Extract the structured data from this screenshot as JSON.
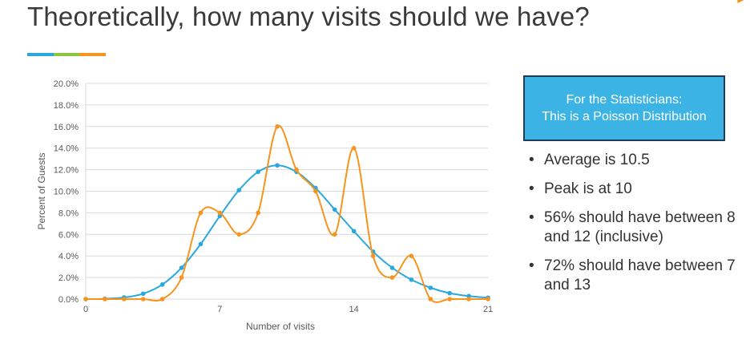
{
  "slide": {
    "title": "Theoretically, how many visits should we have?",
    "accent_colors": [
      "#29a8e0",
      "#8cc63f",
      "#f7941d"
    ]
  },
  "callout": {
    "line1": "For the Statisticians:",
    "line2": "This is a Poisson Distribution",
    "fill_color": "#3bb4e5",
    "border_color": "#1f3c5a"
  },
  "bullets": [
    "Average is 10.5",
    "Peak is at 10",
    "56% should have between 8 and 12 (inclusive)",
    "72% should have between 7 and 13"
  ],
  "chart_data": {
    "type": "line",
    "xlabel": "Number of visits",
    "ylabel": "Percent of Guests",
    "xlim": [
      0,
      21
    ],
    "ylim": [
      0,
      20
    ],
    "x_ticks": [
      "0",
      "7",
      "14",
      "21"
    ],
    "y_ticks": [
      "0.0%",
      "2.0%",
      "4.0%",
      "6.0%",
      "8.0%",
      "10.0%",
      "12.0%",
      "14.0%",
      "16.0%",
      "18.0%",
      "20.0%"
    ],
    "grid": true,
    "smooth": true,
    "x": [
      0,
      1,
      2,
      3,
      4,
      5,
      6,
      7,
      8,
      9,
      10,
      11,
      12,
      13,
      14,
      15,
      16,
      17,
      18,
      19,
      20,
      21
    ],
    "series": [
      {
        "color": "#29a8e0",
        "values": [
          0.0,
          0.03,
          0.15,
          0.5,
          1.35,
          2.9,
          5.1,
          7.7,
          10.1,
          11.8,
          12.4,
          11.8,
          10.3,
          8.3,
          6.3,
          4.4,
          2.9,
          1.8,
          1.05,
          0.55,
          0.28,
          0.13
        ]
      },
      {
        "color": "#f7941d",
        "values": [
          0,
          0,
          0,
          0,
          0,
          2.0,
          8.0,
          8.0,
          6.0,
          8.0,
          16.0,
          12.0,
          10.0,
          6.0,
          14.0,
          4.0,
          2.0,
          4.0,
          0,
          0,
          0,
          0
        ]
      }
    ]
  }
}
